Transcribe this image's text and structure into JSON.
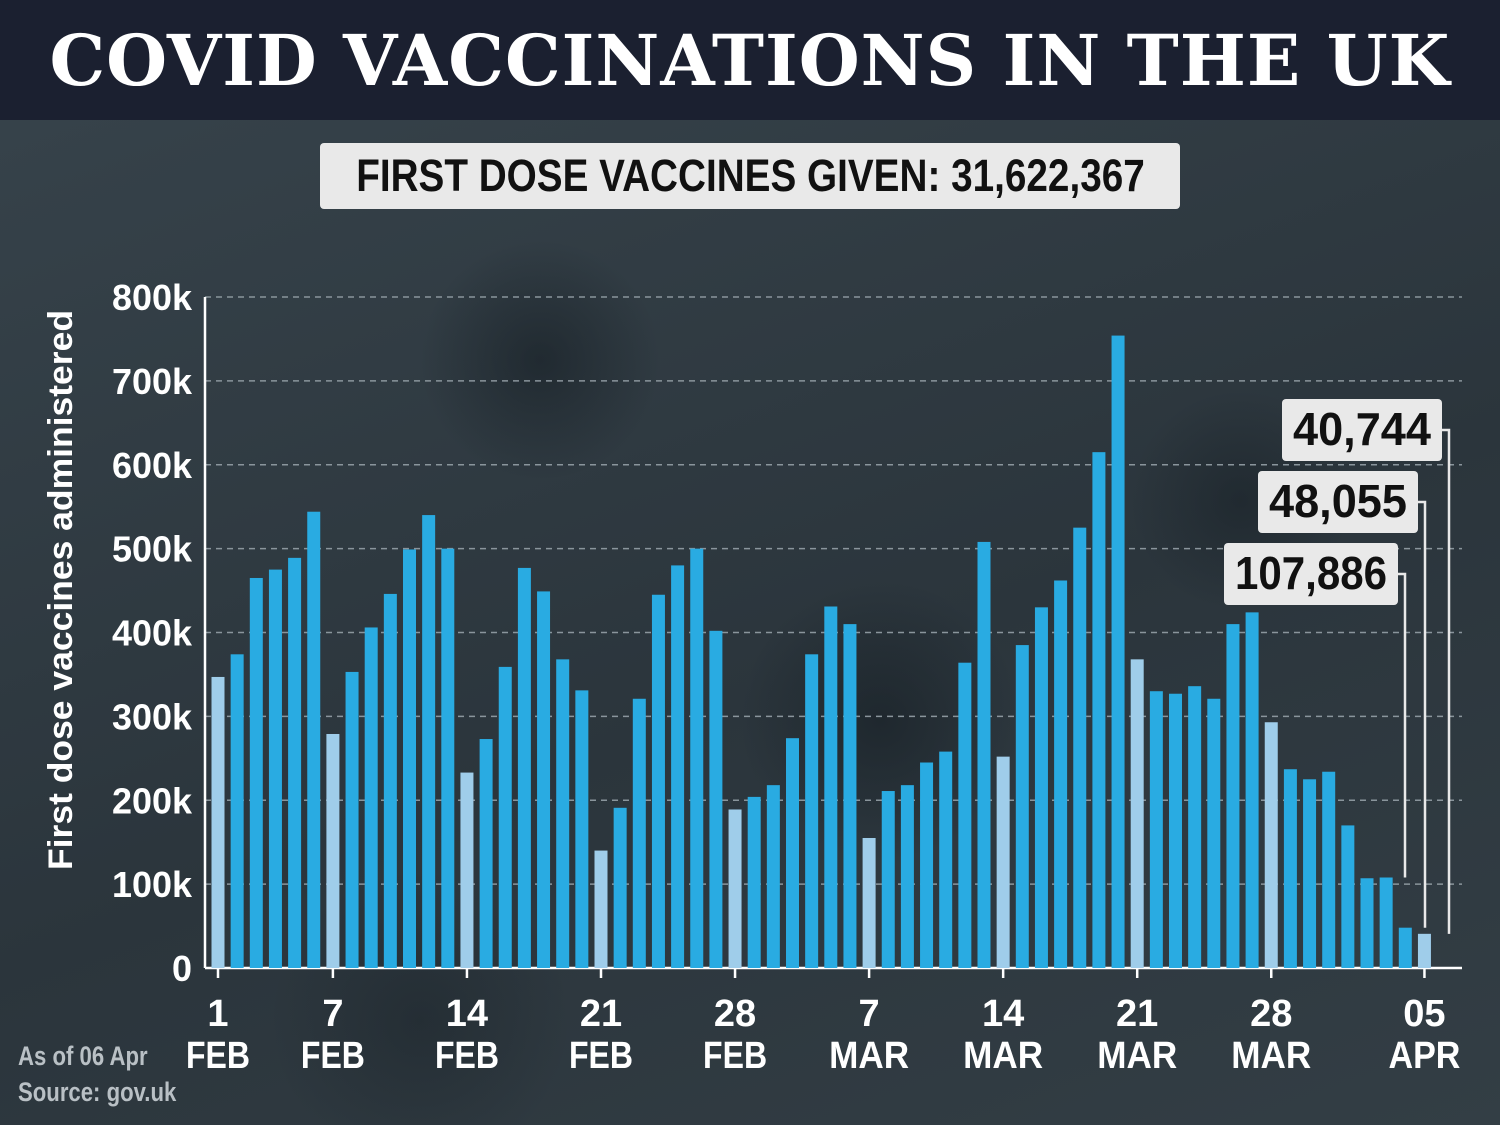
{
  "header": {
    "title": "COVID VACCINATIONS IN THE UK",
    "total_label": "FIRST DOSE VACCINES GIVEN: 31,622,367"
  },
  "footer": {
    "as_of": "As of 06 Apr",
    "source": "Source: gov.uk"
  },
  "colors": {
    "bar_weekday": "#29abe2",
    "bar_sunday": "#9fcdea",
    "header_bg": "#1b2030",
    "callout_bg": "#e9e9e9"
  },
  "chart_data": {
    "type": "bar",
    "ylabel": "First dose vaccines administered",
    "ylim": [
      0,
      800000
    ],
    "y_ticks": [
      0,
      100000,
      200000,
      300000,
      400000,
      500000,
      600000,
      700000,
      800000
    ],
    "y_tick_labels": [
      "0",
      "100k",
      "200k",
      "300k",
      "400k",
      "500k",
      "600k",
      "700k",
      "800k"
    ],
    "grid": "horizontal dashed",
    "x_tick_labels": [
      {
        "index": 0,
        "day": "1",
        "month": "FEB"
      },
      {
        "index": 6,
        "day": "7",
        "month": "FEB"
      },
      {
        "index": 13,
        "day": "14",
        "month": "FEB"
      },
      {
        "index": 20,
        "day": "21",
        "month": "FEB"
      },
      {
        "index": 27,
        "day": "28",
        "month": "FEB"
      },
      {
        "index": 34,
        "day": "7",
        "month": "MAR"
      },
      {
        "index": 41,
        "day": "14",
        "month": "MAR"
      },
      {
        "index": 48,
        "day": "21",
        "month": "MAR"
      },
      {
        "index": 55,
        "day": "28",
        "month": "MAR"
      },
      {
        "index": 63,
        "day": "05",
        "month": "APR"
      }
    ],
    "values": [
      347000,
      374000,
      465000,
      475000,
      489000,
      544000,
      279000,
      353000,
      406000,
      446000,
      499000,
      540000,
      500000,
      233000,
      273000,
      359000,
      477000,
      449000,
      368000,
      331000,
      140000,
      191000,
      321000,
      445000,
      480000,
      500000,
      402000,
      189000,
      204000,
      218000,
      274000,
      374000,
      431000,
      410000,
      155000,
      211000,
      218000,
      245000,
      258000,
      364000,
      508000,
      252000,
      385000,
      430000,
      462000,
      525000,
      615000,
      754000,
      368000,
      330000,
      327000,
      336000,
      321000,
      410000,
      424000,
      293000,
      237000,
      225000,
      234000,
      170000,
      107000,
      107886,
      48055,
      40744
    ],
    "highlight_indices": [
      0,
      6,
      13,
      20,
      27,
      34,
      41,
      48,
      55,
      63
    ],
    "annotations": [
      {
        "index": 61,
        "label": "107,886"
      },
      {
        "index": 62,
        "label": "48,055"
      },
      {
        "index": 63,
        "label": "40,744"
      }
    ]
  }
}
